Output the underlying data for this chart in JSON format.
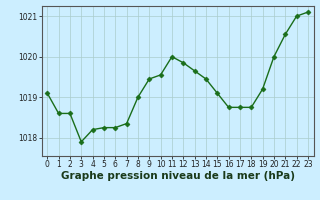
{
  "hours": [
    0,
    1,
    2,
    3,
    4,
    5,
    6,
    7,
    8,
    9,
    10,
    11,
    12,
    13,
    14,
    15,
    16,
    17,
    18,
    19,
    20,
    21,
    22,
    23
  ],
  "pressure": [
    1019.1,
    1018.6,
    1018.6,
    1017.9,
    1018.2,
    1018.25,
    1018.25,
    1018.35,
    1019.0,
    1019.45,
    1019.55,
    1020.0,
    1019.85,
    1019.65,
    1019.45,
    1019.1,
    1018.75,
    1018.75,
    1018.75,
    1019.2,
    1020.0,
    1020.55,
    1021.0,
    1021.1
  ],
  "line_color": "#1a6e1a",
  "marker": "D",
  "marker_size": 2.5,
  "bg_color": "#cceeff",
  "grid_color": "#aacccc",
  "ylabel_ticks": [
    1018,
    1019,
    1020,
    1021
  ],
  "xlabel_ticks": [
    0,
    1,
    2,
    3,
    4,
    5,
    6,
    7,
    8,
    9,
    10,
    11,
    12,
    13,
    14,
    15,
    16,
    17,
    18,
    19,
    20,
    21,
    22,
    23
  ],
  "ylim": [
    1017.55,
    1021.25
  ],
  "xlim": [
    -0.5,
    23.5
  ],
  "xlabel_label": "Graphe pression niveau de la mer (hPa)",
  "tick_fontsize": 5.5,
  "label_fontsize": 7.5,
  "line_width": 1.0
}
